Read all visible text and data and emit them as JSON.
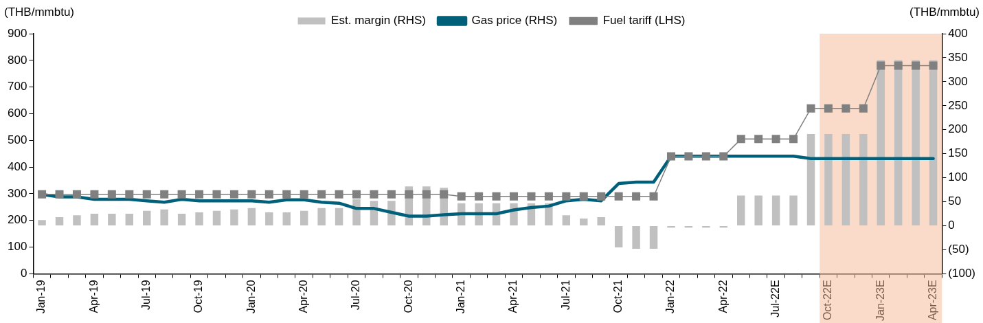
{
  "chart_data": {
    "type": "bar",
    "ylabel": "(THB/mmbtu)",
    "y2label": "(THB/mmbtu)",
    "categories": [
      "Jan-19",
      null,
      null,
      "Apr-19",
      null,
      null,
      "Jul-19",
      null,
      null,
      "Oct-19",
      null,
      null,
      "Jan-20",
      null,
      null,
      "Apr-20",
      null,
      null,
      "Jul-20",
      null,
      null,
      "Oct-20",
      null,
      null,
      "Jan-21",
      null,
      null,
      "Apr-21",
      null,
      null,
      "Jul-21",
      null,
      null,
      "Oct-21",
      null,
      null,
      "Jan-22",
      null,
      null,
      "Apr-22",
      null,
      null,
      "Jul-22E",
      null,
      null,
      "Oct-22E",
      null,
      null,
      "Jan-23E",
      null,
      null,
      "Apr-23E"
    ],
    "series": [
      {
        "name": "Est. margin (RHS)",
        "axis": "y2",
        "color": "#c0c0c0",
        "values": [
          12,
          18,
          22,
          25,
          25,
          25,
          31,
          34,
          25,
          28,
          31,
          34,
          37,
          28,
          28,
          31,
          37,
          37,
          55,
          52,
          52,
          82,
          82,
          79,
          47,
          47,
          47,
          47,
          47,
          47,
          22,
          15,
          18,
          -45,
          -48,
          -48,
          -4,
          -4,
          -4,
          -4,
          63,
          63,
          63,
          63,
          191,
          191,
          191,
          191,
          345,
          345,
          345,
          345
        ]
      },
      {
        "name": "Gas price (RHS)",
        "type": "line",
        "axis": "y2",
        "color": "#00607a",
        "marker": "none",
        "line_style": "solid",
        "values": [
          65,
          60,
          60,
          55,
          55,
          55,
          52,
          49,
          55,
          52,
          52,
          52,
          52,
          49,
          54,
          54,
          49,
          47,
          36,
          36,
          28,
          20,
          20,
          23,
          25,
          25,
          25,
          33,
          38,
          41,
          52,
          55,
          52,
          88,
          91,
          91,
          145,
          145,
          145,
          145,
          145,
          145,
          145,
          145,
          140,
          140,
          140,
          140,
          140,
          140,
          140,
          140
        ]
      },
      {
        "name": "Fuel tariff (LHS)",
        "type": "line",
        "axis": "y",
        "color": "#808080",
        "marker": "square",
        "line_style": "solid",
        "values": [
          298,
          298,
          298,
          298,
          298,
          298,
          298,
          298,
          298,
          298,
          298,
          298,
          298,
          298,
          298,
          298,
          298,
          298,
          298,
          298,
          298,
          298,
          298,
          298,
          290,
          290,
          290,
          290,
          290,
          290,
          290,
          290,
          290,
          290,
          290,
          290,
          440,
          440,
          440,
          440,
          505,
          505,
          505,
          505,
          620,
          620,
          620,
          620,
          780,
          780,
          780,
          780
        ]
      }
    ],
    "ylim": [
      0,
      900
    ],
    "yticks": [
      0,
      100,
      200,
      300,
      400,
      500,
      600,
      700,
      800,
      900
    ],
    "y2lim": [
      -100,
      400
    ],
    "y2ticks": [
      {
        "value": -100,
        "label": "(100)"
      },
      {
        "value": -50,
        "label": "(50)"
      },
      0,
      50,
      100,
      150,
      200,
      250,
      300,
      350,
      400
    ],
    "bands": [
      {
        "axis": "x",
        "from": "Oct-22E",
        "to": "Apr-23E",
        "color": "#f6b894"
      }
    ],
    "legend": "top",
    "grid": false
  }
}
